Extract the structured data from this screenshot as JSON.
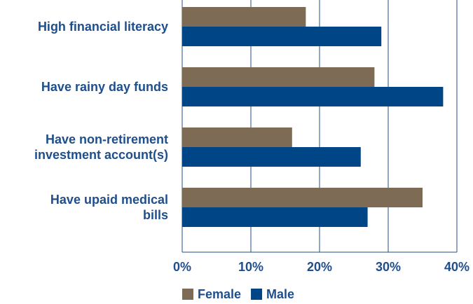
{
  "chart_data": {
    "type": "bar",
    "orientation": "horizontal",
    "categories": [
      "High financial literacy",
      "Have rainy day funds",
      "Have non-retirement\ninvestment account(s)",
      "Have upaid medical\nbills"
    ],
    "series": [
      {
        "name": "Female",
        "color": "#7d6b55",
        "values": [
          18,
          28,
          16,
          35
        ]
      },
      {
        "name": "Male",
        "color": "#004585",
        "values": [
          29,
          38,
          26,
          27
        ]
      }
    ],
    "xlim": [
      0,
      40
    ],
    "xticks": [
      {
        "value": 0,
        "label": "0%"
      },
      {
        "value": 10,
        "label": "10%"
      },
      {
        "value": 20,
        "label": "20%"
      },
      {
        "value": 30,
        "label": "30%"
      },
      {
        "value": 40,
        "label": "40%"
      }
    ],
    "grid": true,
    "legend": "bottom"
  }
}
